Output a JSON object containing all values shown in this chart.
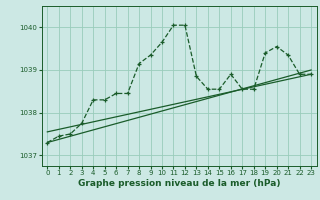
{
  "xlabel": "Graphe pression niveau de la mer (hPa)",
  "bg_color": "#cce8e4",
  "line_color": "#1a5c2a",
  "grid_color": "#99ccbb",
  "ylim": [
    1036.75,
    1040.5
  ],
  "xlim": [
    -0.5,
    23.5
  ],
  "yticks": [
    1037,
    1038,
    1039,
    1040
  ],
  "xticks": [
    0,
    1,
    2,
    3,
    4,
    5,
    6,
    7,
    8,
    9,
    10,
    11,
    12,
    13,
    14,
    15,
    16,
    17,
    18,
    19,
    20,
    21,
    22,
    23
  ],
  "main_line_x": [
    0,
    1,
    2,
    3,
    4,
    5,
    6,
    7,
    8,
    9,
    10,
    11,
    12,
    13,
    14,
    15,
    16,
    17,
    18,
    19,
    20,
    21,
    22,
    23
  ],
  "main_line_y": [
    1037.3,
    1037.45,
    1037.5,
    1037.75,
    1038.3,
    1038.3,
    1038.45,
    1038.45,
    1039.15,
    1039.35,
    1039.65,
    1040.05,
    1040.05,
    1038.85,
    1038.55,
    1038.55,
    1038.9,
    1038.55,
    1038.55,
    1039.4,
    1039.55,
    1039.35,
    1038.9,
    1038.9
  ],
  "trend1_x": [
    0,
    23
  ],
  "trend1_y": [
    1037.55,
    1038.9
  ],
  "trend2_x": [
    0,
    23
  ],
  "trend2_y": [
    1037.3,
    1039.0
  ],
  "xlabel_fontsize": 6.5,
  "tick_fontsize": 5.0
}
